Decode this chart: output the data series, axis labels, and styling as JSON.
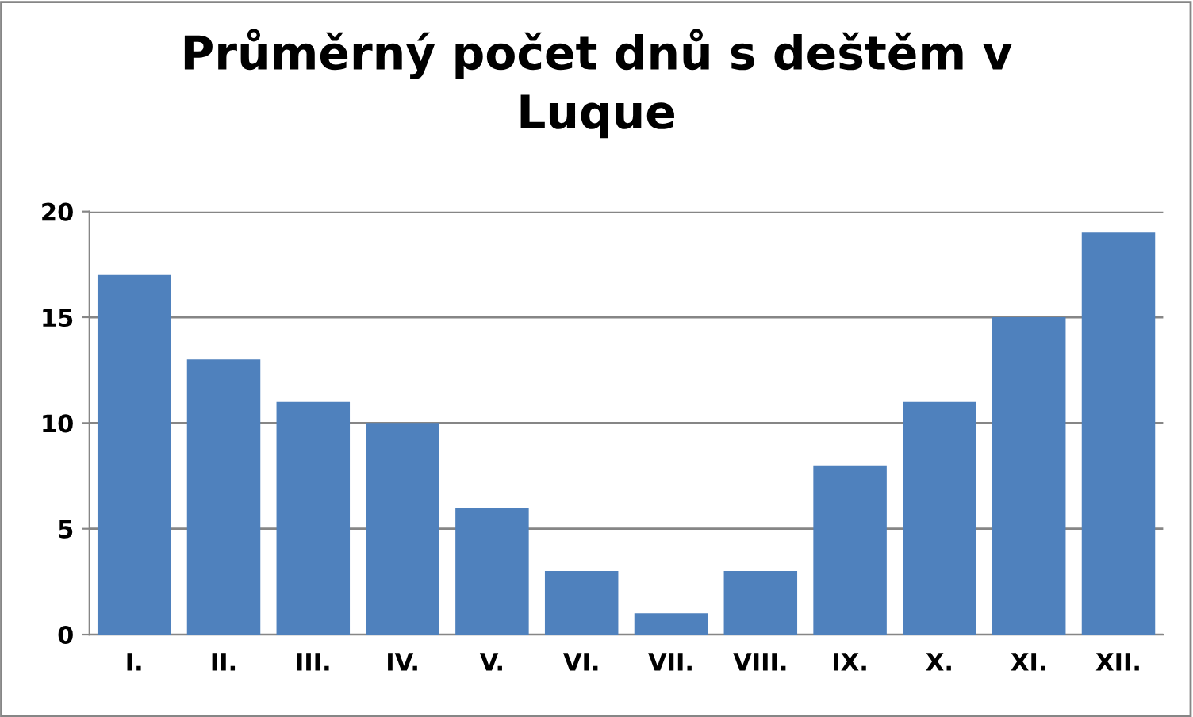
{
  "chart_data": {
    "type": "bar",
    "title": "Průměrný počet dnů s deštěm v\nLuque",
    "categories": [
      "I.",
      "II.",
      "III.",
      "IV.",
      "V.",
      "VI.",
      "VII.",
      "VIII.",
      "IX.",
      "X.",
      "XI.",
      "XII."
    ],
    "values": [
      17,
      13,
      11,
      10,
      6,
      3,
      1,
      3,
      8,
      11,
      15,
      19
    ],
    "color": "#4f81bd",
    "ylim": [
      0,
      20
    ],
    "yticks": [
      0,
      5,
      10,
      15,
      20
    ],
    "grid": "y",
    "legend": false
  }
}
